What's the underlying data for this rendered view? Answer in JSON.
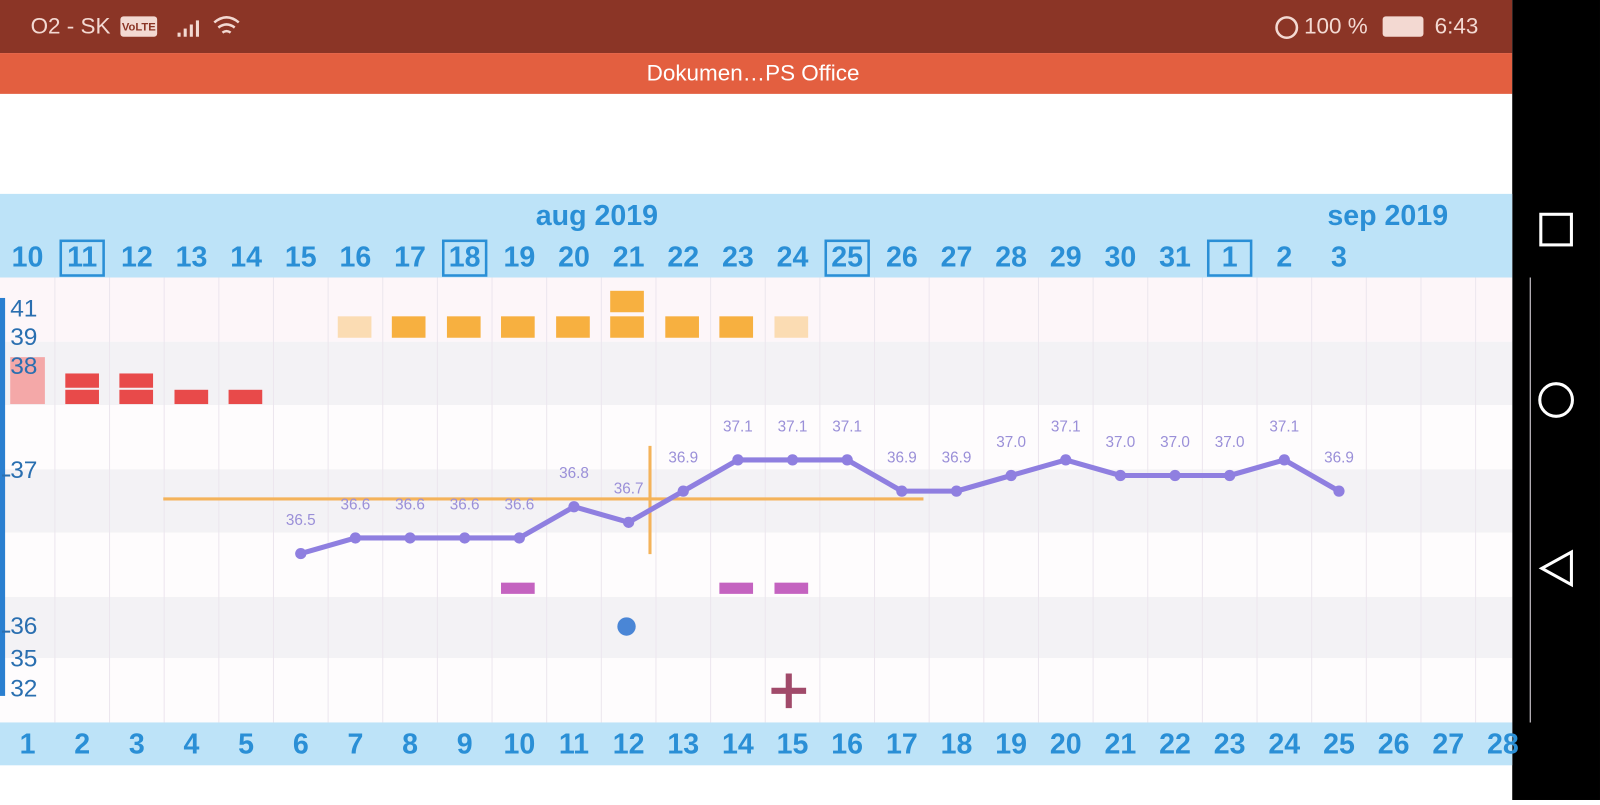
{
  "status_bar": {
    "carrier": "O2 - SK",
    "badge": "VoLTE",
    "battery": "100 %",
    "time": "6:43"
  },
  "app_bar": {
    "title": "Dokumen…PS Office"
  },
  "chart": {
    "months": [
      "aug 2019",
      "sep 2019"
    ],
    "dates": [
      "10",
      "11",
      "12",
      "13",
      "14",
      "15",
      "16",
      "17",
      "18",
      "19",
      "20",
      "21",
      "22",
      "23",
      "24",
      "25",
      "26",
      "27",
      "28",
      "29",
      "30",
      "31",
      "1",
      "2",
      "3"
    ],
    "cycle_days": [
      "1",
      "2",
      "3",
      "4",
      "5",
      "6",
      "7",
      "8",
      "9",
      "10",
      "11",
      "12",
      "13",
      "14",
      "15",
      "16",
      "17",
      "18",
      "19",
      "20",
      "21",
      "22",
      "23",
      "24",
      "25",
      "26",
      "27",
      "28"
    ],
    "side_labels": [
      "41",
      "39",
      "38",
      "35",
      "32"
    ],
    "yticks": [
      36,
      37
    ],
    "coverline": 36.85,
    "temperature": {
      "color": "#8f7fe0",
      "x": [
        6,
        7,
        8,
        9,
        10,
        11,
        12,
        13,
        14,
        15,
        16,
        17,
        18,
        19,
        20,
        21,
        22,
        23,
        24,
        25
      ],
      "values": [
        36.5,
        36.6,
        36.6,
        36.6,
        36.6,
        36.8,
        36.7,
        36.9,
        37.1,
        37.1,
        37.1,
        36.9,
        36.9,
        37.0,
        37.1,
        37.0,
        37.0,
        37.0,
        37.1,
        36.9
      ],
      "value_labels": [
        "36.5",
        "36.6",
        "36.6",
        "36.6",
        "36.6",
        "36.8",
        "36.7",
        "36.9",
        "37.1",
        "37.1",
        "37.1",
        "36.9",
        "36.9",
        "37.0",
        "37.1",
        "37.0",
        "37.0",
        "37.0",
        "37.1",
        "36.9"
      ]
    }
  }
}
